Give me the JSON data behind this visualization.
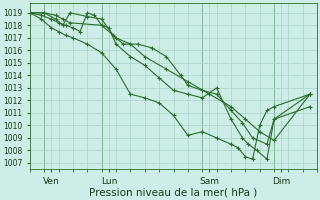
{
  "bg_color": "#cceee6",
  "grid_color": "#aad4c8",
  "line_color": "#2a6e2a",
  "xlabel": "Pression niveau de la mer( hPa )",
  "xlabel_fontsize": 7.5,
  "ylim": [
    1006.5,
    1019.8
  ],
  "yticks": [
    1007,
    1008,
    1009,
    1010,
    1011,
    1012,
    1013,
    1014,
    1015,
    1016,
    1017,
    1018,
    1019
  ],
  "xlim": [
    0,
    20
  ],
  "xtick_positions": [
    1.5,
    5.5,
    12.5,
    17.5
  ],
  "xtick_labels": [
    "Ven",
    "Lun",
    "Sam",
    "Dim"
  ],
  "vline_positions": [
    1.0,
    5.0,
    12.0,
    17.0
  ],
  "series": [
    {
      "x": [
        0.0,
        1.0,
        1.8,
        2.3,
        2.8,
        5.0,
        6.0,
        7.0,
        8.0,
        9.5,
        11.0,
        12.5,
        14.0,
        15.0,
        16.0,
        17.0,
        19.5
      ],
      "y": [
        1019.0,
        1019.0,
        1018.8,
        1018.5,
        1018.2,
        1018.0,
        1017.0,
        1016.5,
        1015.5,
        1014.5,
        1013.5,
        1012.5,
        1011.5,
        1010.5,
        1009.5,
        1008.8,
        1012.5
      ]
    },
    {
      "x": [
        0.0,
        1.0,
        1.8,
        2.3,
        2.8,
        4.0,
        5.0,
        5.8,
        6.5,
        7.5,
        8.5,
        9.5,
        10.5,
        11.0,
        12.0,
        13.0,
        14.0,
        14.8,
        15.5,
        16.5,
        17.0,
        19.5
      ],
      "y": [
        1019.0,
        1019.0,
        1018.5,
        1018.0,
        1019.0,
        1018.7,
        1018.5,
        1017.2,
        1016.5,
        1016.5,
        1016.2,
        1015.5,
        1014.0,
        1013.2,
        1012.8,
        1012.5,
        1011.2,
        1010.2,
        1009.0,
        1008.5,
        1010.5,
        1012.5
      ]
    },
    {
      "x": [
        0.0,
        0.8,
        1.5,
        2.0,
        2.5,
        3.0,
        3.5,
        4.0,
        4.5,
        5.0,
        5.5,
        6.0,
        7.0,
        8.0,
        9.0,
        10.0,
        11.0,
        12.0,
        13.0,
        14.0,
        14.8,
        15.2,
        15.8,
        16.5,
        17.0,
        19.5
      ],
      "y": [
        1019.0,
        1018.8,
        1018.5,
        1018.2,
        1018.0,
        1017.8,
        1017.5,
        1019.0,
        1018.8,
        1018.0,
        1017.8,
        1016.5,
        1015.5,
        1014.8,
        1013.8,
        1012.8,
        1012.5,
        1012.2,
        1013.0,
        1010.5,
        1009.0,
        1008.5,
        1008.0,
        1007.3,
        1010.5,
        1011.5
      ]
    },
    {
      "x": [
        0.0,
        0.8,
        1.5,
        2.0,
        2.5,
        3.0,
        4.0,
        5.0,
        6.0,
        7.0,
        8.0,
        9.0,
        10.0,
        11.0,
        12.0,
        13.0,
        14.0,
        14.5,
        15.0,
        15.5,
        16.0,
        16.5,
        17.0,
        19.5
      ],
      "y": [
        1019.0,
        1018.5,
        1017.8,
        1017.5,
        1017.2,
        1017.0,
        1016.5,
        1015.8,
        1014.5,
        1012.5,
        1012.2,
        1011.8,
        1010.8,
        1009.2,
        1009.5,
        1009.0,
        1008.5,
        1008.2,
        1007.5,
        1007.3,
        1010.0,
        1011.2,
        1011.5,
        1012.5
      ]
    }
  ]
}
